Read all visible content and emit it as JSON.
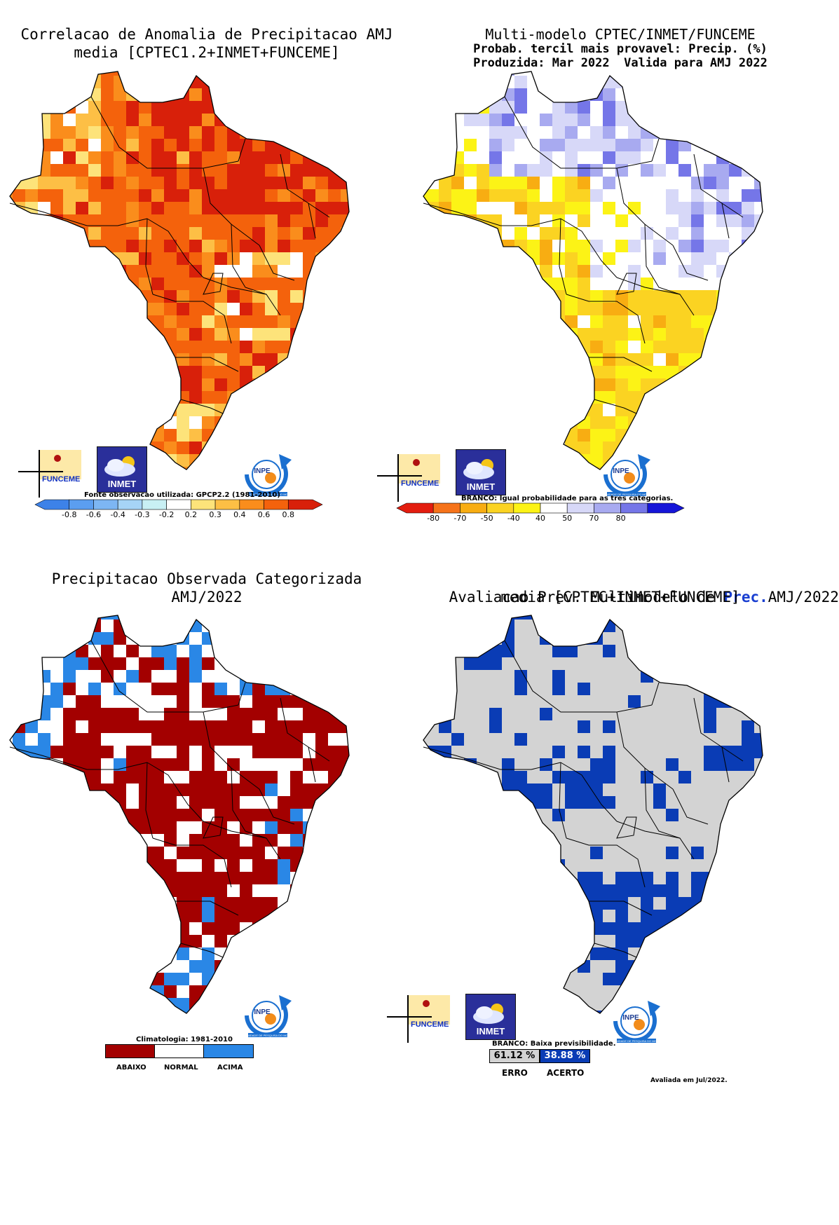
{
  "panels": {
    "p1": {
      "title_line1": "Correlacao de Anomalia de Precipitacao AMJ",
      "title_line2": "media [CPTEC1.2+INMET+FUNCEME]",
      "source_note": "Fonte observacao utilizada: GPCP2.2 (1981-2010)",
      "ticks": [
        "-0.8",
        "-0.6",
        "-0.4",
        "-0.3",
        "-0.2",
        "0.2",
        "0.3",
        "0.4",
        "0.6",
        "0.8"
      ],
      "colors": [
        "#3d82e8",
        "#5b9ef0",
        "#7db6f3",
        "#a6d4f6",
        "#c8f0f4",
        "#ffffff",
        "#fde37a",
        "#fdbf45",
        "#fa8d1c",
        "#f4620c",
        "#d8200a"
      ]
    },
    "p2": {
      "title_line1": "Multi-modelo CPTEC/INMET/FUNCEME",
      "title_line2": "Probab. tercil mais provavel: Precip. (%)",
      "title_line3": "Produzida: Mar 2022  Valida para AMJ 2022",
      "branco_note": "BRANCO: Igual probabilidade para as tres categorias.",
      "ticks": [
        "-80",
        "-70",
        "-50",
        "-40",
        "40",
        "50",
        "70",
        "80"
      ],
      "colors": [
        "#e31d0f",
        "#f6731a",
        "#f8ad12",
        "#fbd322",
        "#fcf316",
        "#ffffff",
        "#d7d8f8",
        "#a8aaf0",
        "#7576e8",
        "#1515d8"
      ]
    },
    "p3": {
      "title_line1": "Precipitacao Observada Categorizada",
      "title_line2": "AMJ/2022",
      "clim_note": "Climatologia: 1981-2010",
      "categories": [
        {
          "label": "ABAIXO",
          "color": "#a30000"
        },
        {
          "label": "NORMAL",
          "color": "#ffffff"
        },
        {
          "label": "ACIMA",
          "color": "#2a87e6"
        }
      ]
    },
    "p4": {
      "title_prefix": "Avaliacao Prev. Multimodelo de",
      "title_highlight": "Prec.",
      "title_suffix": "AMJ/2022",
      "title_line2": "media [CPTEC+INMET+FUNCEME]",
      "branco_note": "BRANCO: Baixa previsibilidade.",
      "erro_pct": "61.12 %",
      "acerto_pct": "38.88 %",
      "erro_label": "ERRO",
      "acerto_label": "ACERTO",
      "erro_color": "#d3d3d3",
      "acerto_color": "#0a3cb5",
      "evaluated": "Avaliada em Jul/2022."
    }
  },
  "logos": {
    "funceme": "FUNCEME",
    "inmet": "INMET",
    "inpe": "INPE",
    "inpe_caption": "UNIDADE DE PESQUISA DO MCTI"
  }
}
